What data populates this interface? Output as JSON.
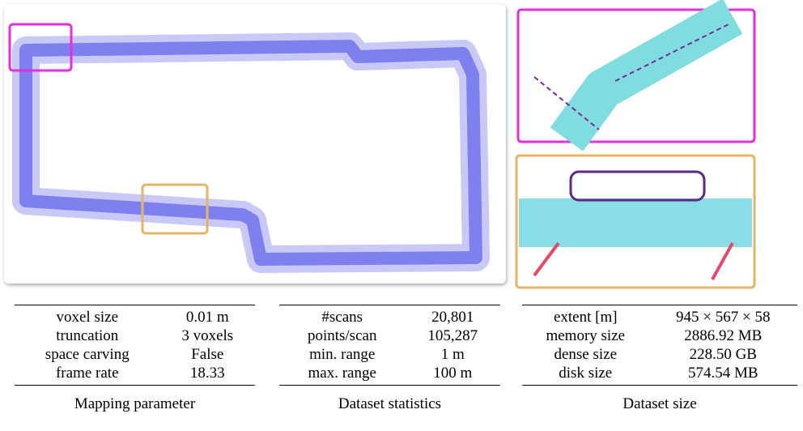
{
  "tables": [
    {
      "caption": "Mapping parameter",
      "rows": [
        [
          "voxel size",
          "0.01 m"
        ],
        [
          "truncation",
          "3 voxels"
        ],
        [
          "space carving",
          "False"
        ],
        [
          "frame rate",
          "18.33"
        ]
      ]
    },
    {
      "caption": "Dataset statistics",
      "rows": [
        [
          "#scans",
          "20,801"
        ],
        [
          "points/scan",
          "105,287"
        ],
        [
          "min. range",
          "1 m"
        ],
        [
          "max. range",
          "100 m"
        ]
      ]
    },
    {
      "caption": "Dataset size",
      "rows": [
        [
          "extent [m]",
          "945 × 567 × 58"
        ],
        [
          "memory size",
          "2886.92 MB"
        ],
        [
          "dense size",
          "228.50 GB"
        ],
        [
          "disk size",
          "574.54 MB"
        ]
      ]
    }
  ]
}
